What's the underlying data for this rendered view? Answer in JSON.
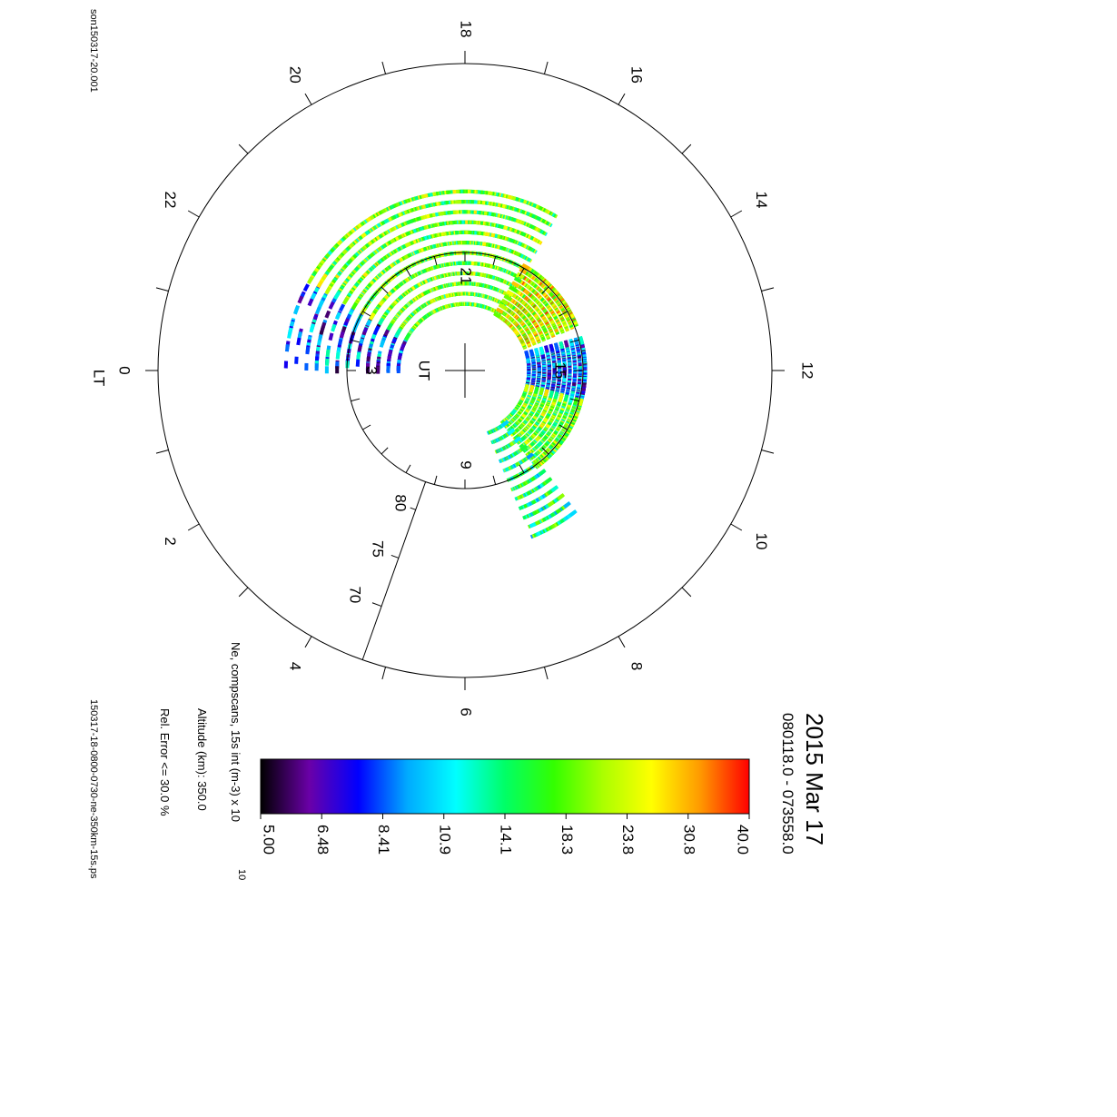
{
  "header": {
    "date": "2015 Mar 17",
    "time_range": "080118.0 - 073558.0",
    "file_left": "son150317-20.001",
    "file_right": "150317-18-0800-0730-ne-350km-15s.ps"
  },
  "info": {
    "param": "Ne, compscans, 15s int (m-3) x 10",
    "param_exp": "10",
    "altitude": "Altitude (km): 350.0",
    "rel_error": "Rel. Error <= 30.0 %"
  },
  "labels": {
    "lt": "LT",
    "ut": "UT",
    "lt_hours": [
      "0",
      "2",
      "4",
      "6",
      "8",
      "10",
      "12",
      "14",
      "16",
      "18",
      "20",
      "22"
    ],
    "ut_hours": [
      "3",
      "9",
      "15",
      "21"
    ],
    "lat_ticks": [
      "70",
      "75",
      "80"
    ]
  },
  "chart_data": {
    "type": "heatmap",
    "title": "2015 Mar 17",
    "subtitle": "080118.0 - 073558.0",
    "projection": "polar, local time (LT) around the outer ring, latitude radial",
    "colorbar": {
      "label": "Ne, compscans, 15s int (m-3) x 10^10",
      "ticks": [
        "5.00",
        "6.48",
        "8.41",
        "10.9",
        "14.1",
        "18.3",
        "23.8",
        "30.8",
        "40.0"
      ],
      "range": [
        5.0,
        40.0
      ],
      "scale": "log",
      "colors": [
        "#000000",
        "#6a00a8",
        "#0000ff",
        "#00aaff",
        "#00ffff",
        "#00ff66",
        "#33ff00",
        "#aaff00",
        "#ffff00",
        "#ff9900",
        "#ff0000"
      ]
    },
    "rings": [
      {
        "region": "LT 22-0",
        "lat_range": [
          72,
          84
        ],
        "typical_value": "8.41",
        "coverage": "sparse"
      },
      {
        "region": "LT 16-22",
        "lat_range": [
          72,
          84
        ],
        "typical_value": "18.3",
        "coverage": "dense"
      },
      {
        "region": "LT 13.5-16",
        "lat_range": [
          78,
          84
        ],
        "typical_value": "23.8",
        "coverage": "dense"
      },
      {
        "region": "LT 11-13",
        "lat_range": [
          78,
          84
        ],
        "typical_value": "8.41",
        "coverage": "dense"
      },
      {
        "region": "LT 8.5-11",
        "lat_range": [
          78,
          84
        ],
        "typical_value": "18.3",
        "coverage": "dense"
      },
      {
        "region": "LT 7.5-8.5",
        "lat_range": [
          72,
          84
        ],
        "typical_value": "14.1",
        "coverage": "dense"
      }
    ]
  }
}
